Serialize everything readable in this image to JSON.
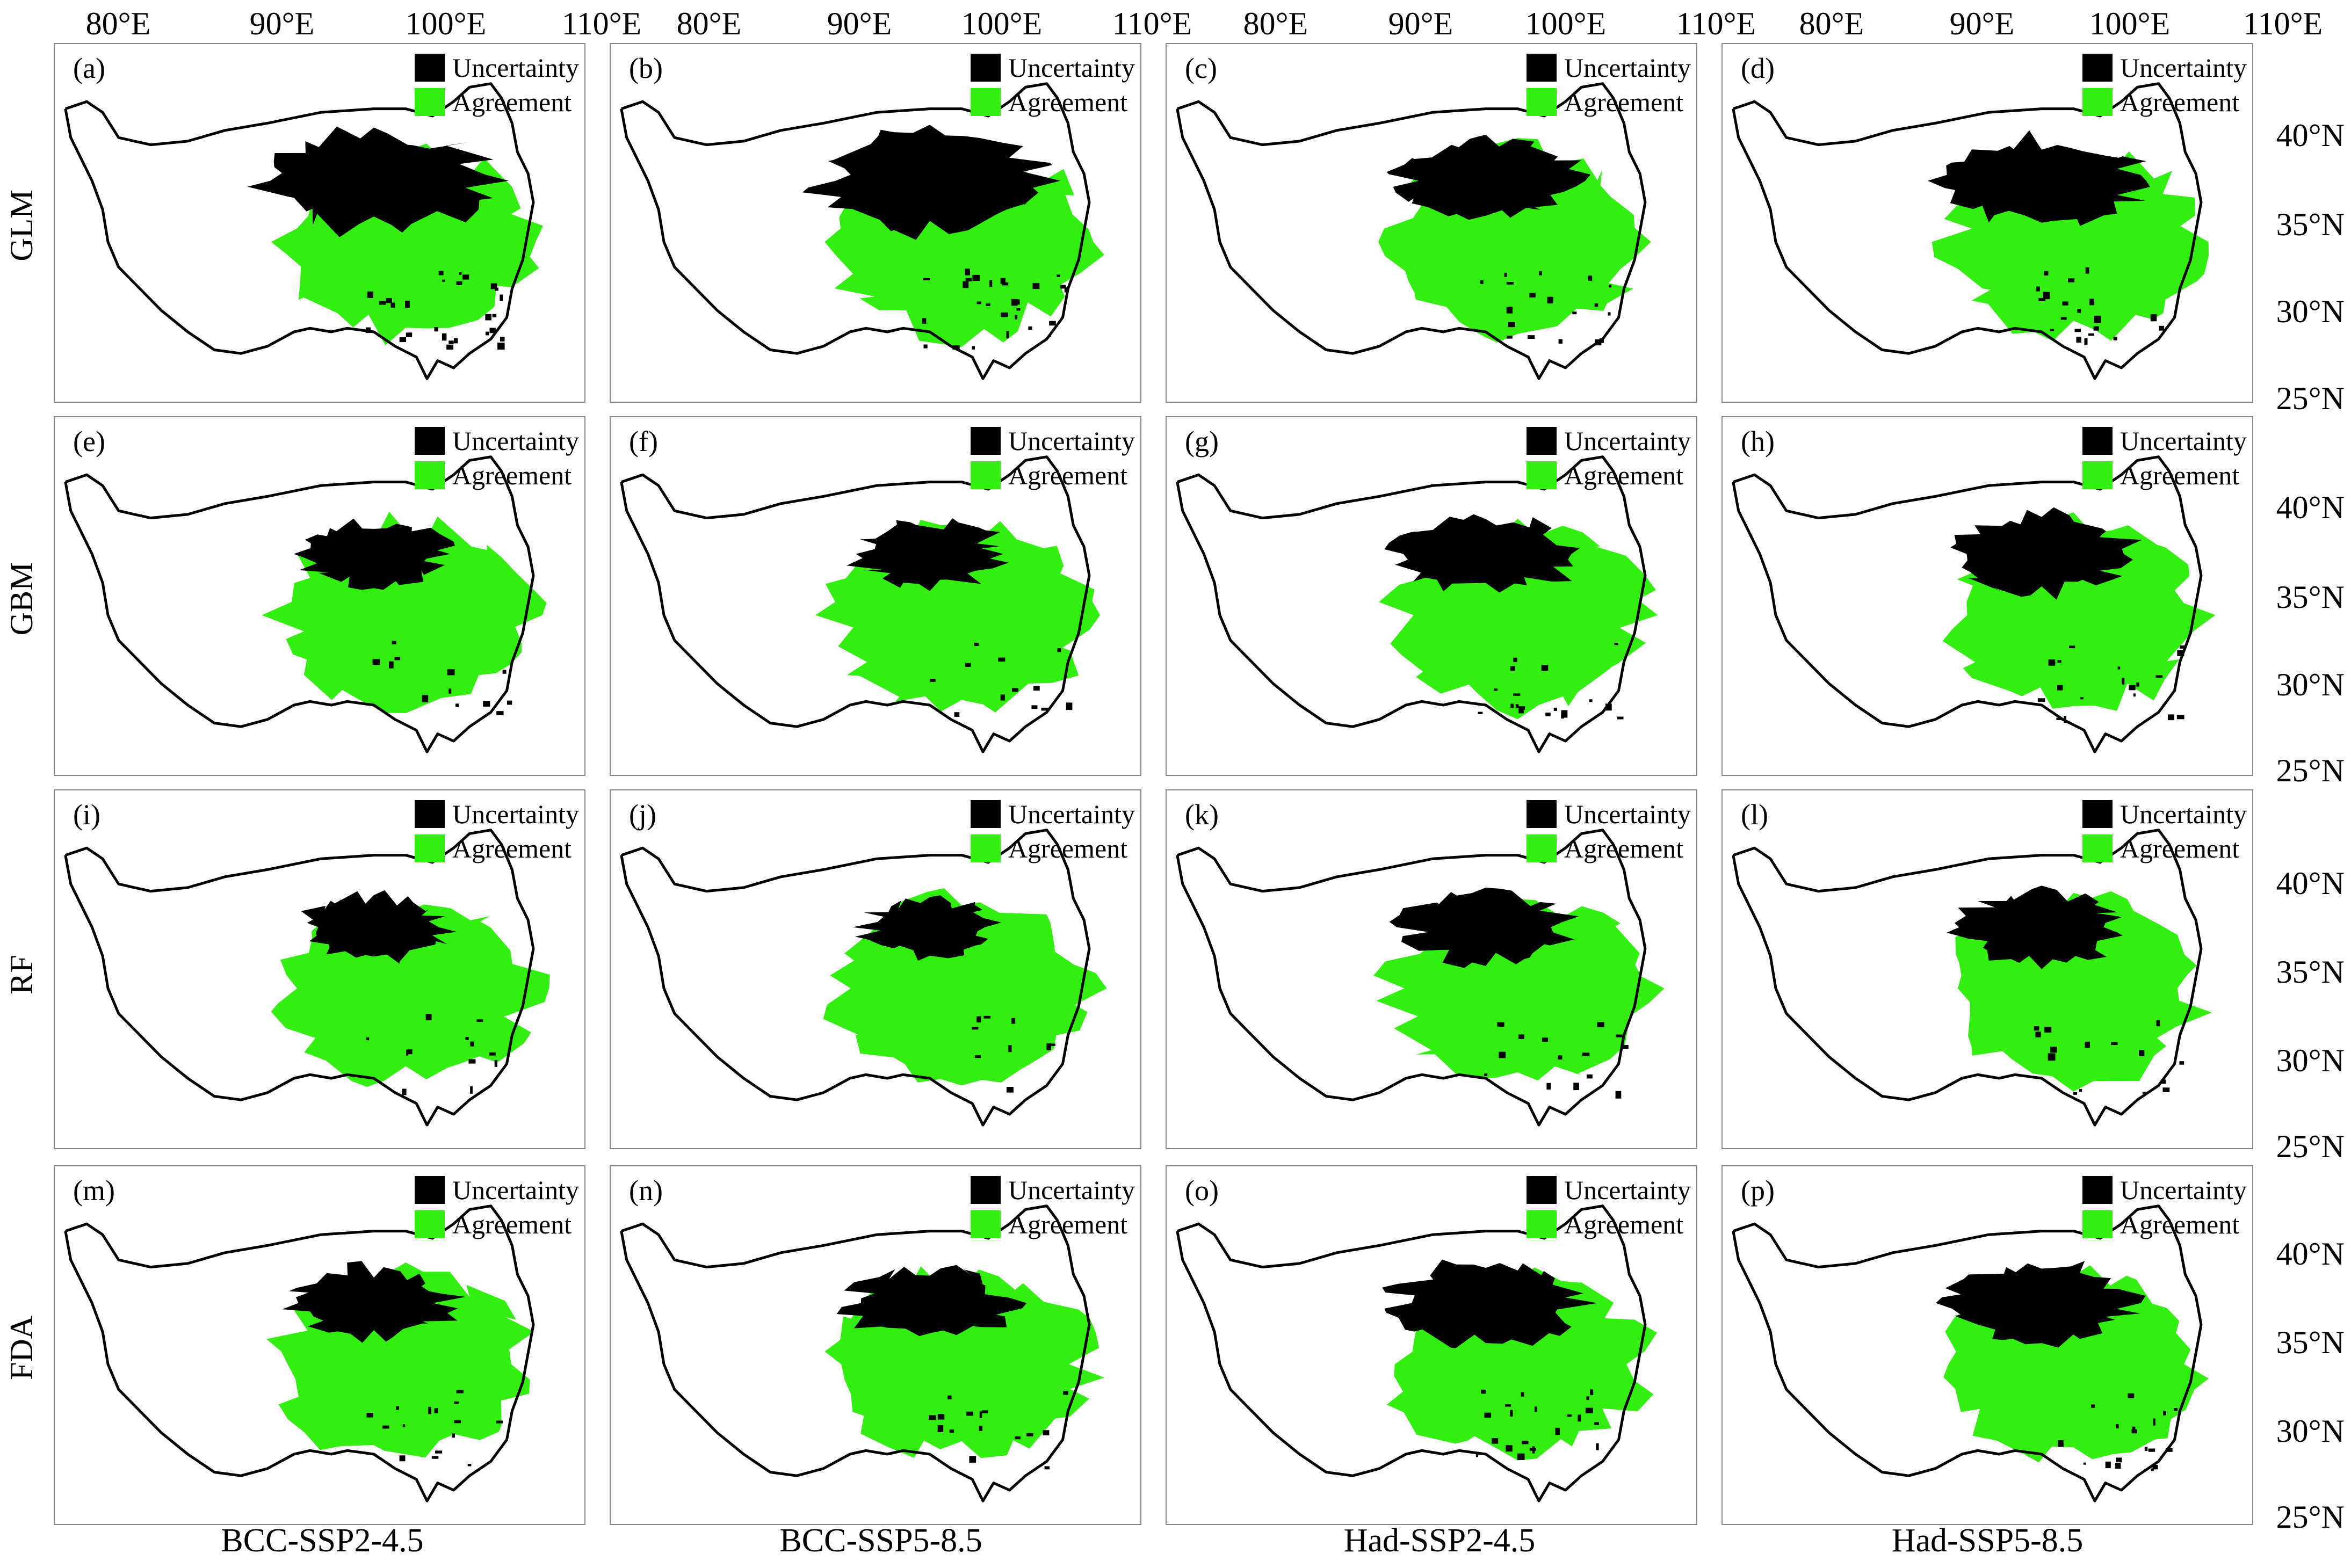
{
  "colors": {
    "uncertainty": "#000000",
    "agreement": "#33ee11"
  },
  "top_axis_ticks": [
    [
      "80°E",
      "90°E",
      "100°E",
      "110°E"
    ],
    [
      "80°E",
      "90°E",
      "100°E",
      "110°E"
    ],
    [
      "80°E",
      "90°E",
      "100°E",
      "110°E"
    ],
    [
      "80°E",
      "90°E",
      "100°E",
      "110°E"
    ]
  ],
  "right_axis_ticks": [
    [
      "40°N",
      "35°N",
      "30°N",
      "25°N"
    ],
    [
      "40°N",
      "35°N",
      "30°N",
      "25°N"
    ],
    [
      "40°N",
      "35°N",
      "30°N",
      "25°N"
    ],
    [
      "40°N",
      "35°N",
      "30°N",
      "25°N"
    ]
  ],
  "row_labels": [
    "GLM",
    "GBM",
    "RF",
    "FDA"
  ],
  "column_labels": [
    "BCC-SSP2-4.5",
    "BCC-SSP5-8.5",
    "Had-SSP2-4.5",
    "Had-SSP5-8.5"
  ],
  "legend": {
    "uncertainty": "Uncertainty",
    "agreement": "Agreement"
  },
  "panels": [
    {
      "label": "(a)",
      "model": "GLM",
      "scenario": "BCC-SSP2-4.5",
      "uncertainty_level": 0.45
    },
    {
      "label": "(b)",
      "model": "GLM",
      "scenario": "BCC-SSP5-8.5",
      "uncertainty_level": 0.45
    },
    {
      "label": "(c)",
      "model": "GLM",
      "scenario": "Had-SSP2-4.5",
      "uncertainty_level": 0.3
    },
    {
      "label": "(d)",
      "model": "GLM",
      "scenario": "Had-SSP5-8.5",
      "uncertainty_level": 0.35
    },
    {
      "label": "(e)",
      "model": "GBM",
      "scenario": "BCC-SSP2-4.5",
      "uncertainty_level": 0.2
    },
    {
      "label": "(f)",
      "model": "GBM",
      "scenario": "BCC-SSP5-8.5",
      "uncertainty_level": 0.2
    },
    {
      "label": "(g)",
      "model": "GBM",
      "scenario": "Had-SSP2-4.5",
      "uncertainty_level": 0.3
    },
    {
      "label": "(h)",
      "model": "GBM",
      "scenario": "Had-SSP5-8.5",
      "uncertainty_level": 0.3
    },
    {
      "label": "(i)",
      "model": "RF",
      "scenario": "BCC-SSP2-4.5",
      "uncertainty_level": 0.2
    },
    {
      "label": "(j)",
      "model": "RF",
      "scenario": "BCC-SSP5-8.5",
      "uncertainty_level": 0.15
    },
    {
      "label": "(k)",
      "model": "RF",
      "scenario": "Had-SSP2-4.5",
      "uncertainty_level": 0.25
    },
    {
      "label": "(l)",
      "model": "RF",
      "scenario": "Had-SSP5-8.5",
      "uncertainty_level": 0.25
    },
    {
      "label": "(m)",
      "model": "FDA",
      "scenario": "BCC-SSP2-4.5",
      "uncertainty_level": 0.25
    },
    {
      "label": "(n)",
      "model": "FDA",
      "scenario": "BCC-SSP5-8.5",
      "uncertainty_level": 0.25
    },
    {
      "label": "(o)",
      "model": "FDA",
      "scenario": "Had-SSP2-4.5",
      "uncertainty_level": 0.35
    },
    {
      "label": "(p)",
      "model": "FDA",
      "scenario": "Had-SSP5-8.5",
      "uncertainty_level": 0.3
    }
  ]
}
